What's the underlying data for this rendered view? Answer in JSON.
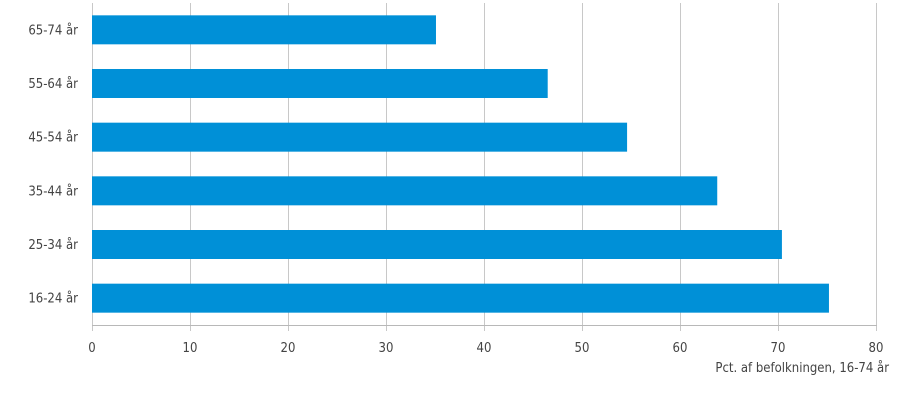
{
  "chart_data": {
    "type": "bar",
    "orientation": "horizontal",
    "categories": [
      "65-74 år",
      "55-64 år",
      "45-54 år",
      "35-44 år",
      "25-34 år",
      "16-24 år"
    ],
    "values": [
      35.1,
      46.5,
      54.6,
      63.8,
      70.4,
      75.2
    ],
    "xlabel": "Pct. af befolkningen, 16-74 år",
    "xlim": [
      0,
      80
    ],
    "xticks": [
      0,
      10,
      20,
      30,
      40,
      50,
      60,
      70,
      80
    ],
    "grid": "vertical",
    "legend": "none",
    "bar_color": "#0090d7"
  }
}
